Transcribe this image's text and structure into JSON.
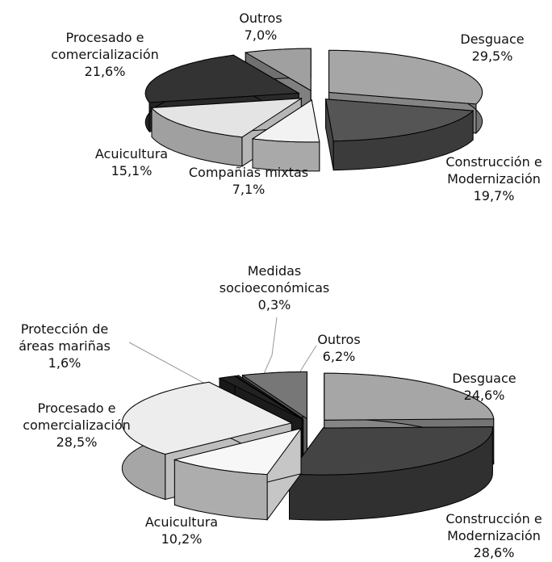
{
  "chart_data": [
    {
      "type": "pie",
      "categories": [
        "Desguace",
        "Construcción e Modernización",
        "Compañias mixtas",
        "Acuicultura",
        "Procesado e comercialización",
        "Outros"
      ],
      "values": [
        29.5,
        19.7,
        7.1,
        15.1,
        21.6,
        7.0
      ],
      "value_labels": [
        "29,5%",
        "19,7%",
        "7,1%",
        "15,1%",
        "21,6%",
        "7,0%"
      ],
      "colors": [
        "#a6a6a6",
        "#555555",
        "#f2f2f2",
        "#e4e4e4",
        "#333333",
        "#a0a0a0"
      ]
    },
    {
      "type": "pie",
      "categories": [
        "Desguace",
        "Construcción e Modernización",
        "Acuicultura",
        "Procesado e comercialización",
        "Protección de áreas mariñas",
        "Medidas socioeconómicas",
        "Outros"
      ],
      "values": [
        24.6,
        28.6,
        10.2,
        28.5,
        1.6,
        0.3,
        6.2
      ],
      "value_labels": [
        "24,6%",
        "28,6%",
        "10,2%",
        "28,5%",
        "1,6%",
        "0,3%",
        "6,2%"
      ],
      "colors": [
        "#a6a6a6",
        "#444444",
        "#f7f7f7",
        "#ededed",
        "#222222",
        "#333333",
        "#777777"
      ]
    }
  ]
}
